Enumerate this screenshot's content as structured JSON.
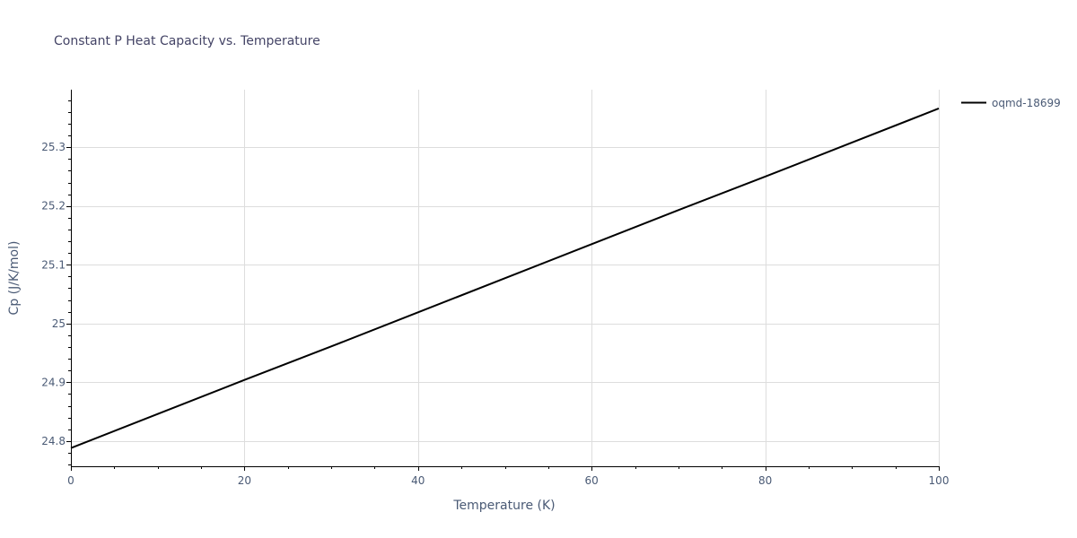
{
  "chart_data": {
    "type": "line",
    "title": "Constant P Heat Capacity vs. Temperature",
    "xlabel": "Temperature (K)",
    "ylabel": "Cp (J/K/mol)",
    "xlim": [
      0,
      100
    ],
    "ylim": [
      24.757,
      25.398
    ],
    "x_ticks": [
      0,
      20,
      40,
      60,
      80,
      100
    ],
    "x_tick_labels": [
      "0",
      "20",
      "40",
      "60",
      "80",
      "100"
    ],
    "y_ticks": [
      24.8,
      24.9,
      25.0,
      25.1,
      25.2,
      25.3
    ],
    "y_tick_labels": [
      "24.8",
      "24.9",
      "25",
      "25.1",
      "25.2",
      "25.3"
    ],
    "grid": true,
    "legend_position": "top-right",
    "series": [
      {
        "name": "oqmd-18699",
        "color": "#000000",
        "x": [
          0,
          10,
          20,
          30,
          40,
          50,
          60,
          70,
          80,
          90,
          100
        ],
        "y": [
          24.788,
          24.846,
          24.904,
          24.961,
          25.019,
          25.077,
          25.135,
          25.193,
          25.25,
          25.308,
          25.366
        ]
      }
    ]
  }
}
